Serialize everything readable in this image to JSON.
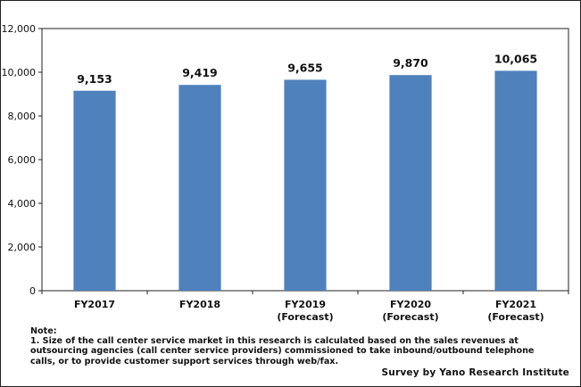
{
  "chart_data": {
    "type": "bar",
    "categories": [
      [
        "FY2017"
      ],
      [
        "FY2018"
      ],
      [
        "FY2019",
        "(Forecast)"
      ],
      [
        "FY2020",
        "(Forecast)"
      ],
      [
        "FY2021",
        "(Forecast)"
      ]
    ],
    "values": [
      9153,
      9419,
      9655,
      9870,
      10065
    ],
    "value_labels": [
      "9,153",
      "9,419",
      "9,655",
      "9,870",
      "10,065"
    ],
    "y_ticks": [
      "0",
      "2,000",
      "4,000",
      "6,000",
      "8,000",
      "10,000",
      "12,000"
    ],
    "ylim": [
      0,
      12000
    ],
    "grid": false,
    "bar_color": "#4f81bd",
    "title": "",
    "xlabel": "",
    "ylabel": ""
  },
  "note": {
    "heading": "Note:",
    "lines": [
      "1. Size of the call center service market in this research is calculated based on the sales revenues at",
      "outsourcing agencies (call center service providers) commissioned to take inbound/outbound telephone",
      "calls, or to provide customer support services through web/fax."
    ]
  },
  "credit": "Survey by Yano Research Institute"
}
